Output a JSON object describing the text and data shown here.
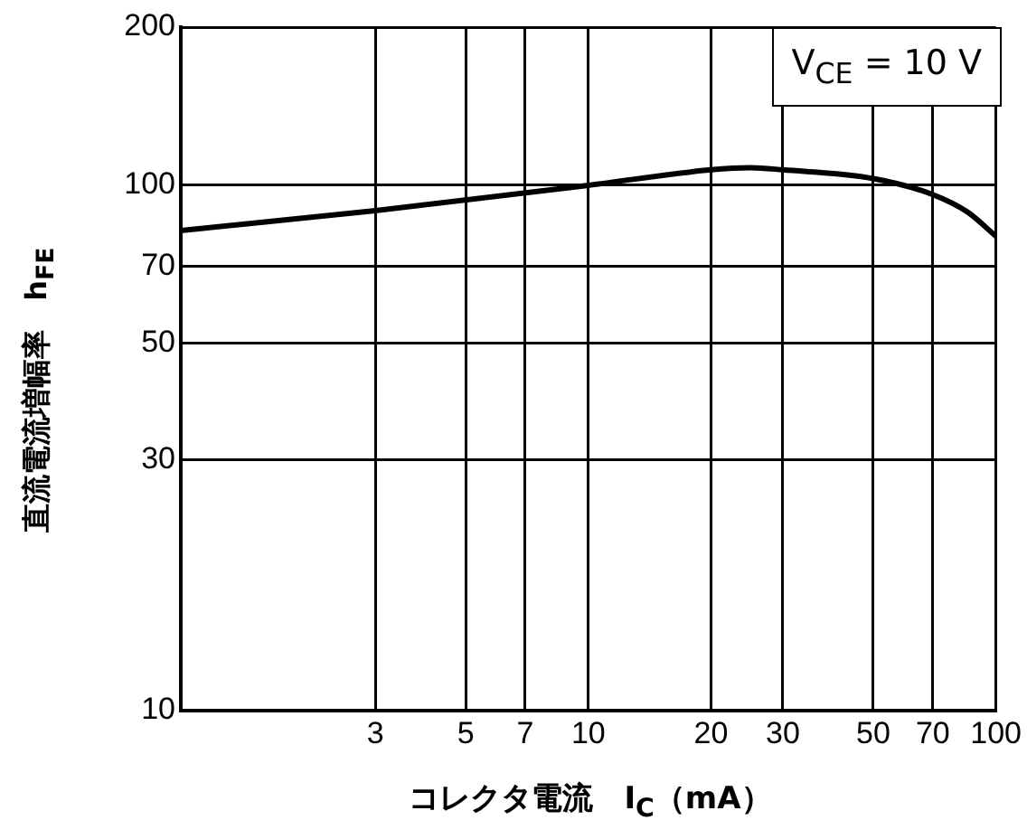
{
  "chart_data": {
    "type": "line",
    "xlabel": "コレクタ電流　I$_{C}$（mA）",
    "ylabel": "直流電流増幅率　h$_{FE}$",
    "annotations": [
      "V$_{CE}$ = 10 V"
    ],
    "x": [
      1,
      3,
      10,
      20,
      25,
      30,
      50,
      70,
      85,
      100
    ],
    "series": [
      {
        "color": "#000000",
        "values": [
          82,
          89.5,
          100,
          107,
          108,
          107,
          103,
          96,
          89,
          80
        ]
      }
    ],
    "log": "xy",
    "xlim": [
      1,
      100
    ],
    "ylim": [
      10,
      200
    ],
    "xticks": [
      {
        "value": 1,
        "label": null
      },
      3,
      5,
      7,
      10,
      20,
      30,
      50,
      70,
      100
    ],
    "yticks": [
      10,
      30,
      50,
      70,
      100,
      200
    ],
    "grid": true,
    "legend": false,
    "marker": "none",
    "line_style": "solid"
  }
}
